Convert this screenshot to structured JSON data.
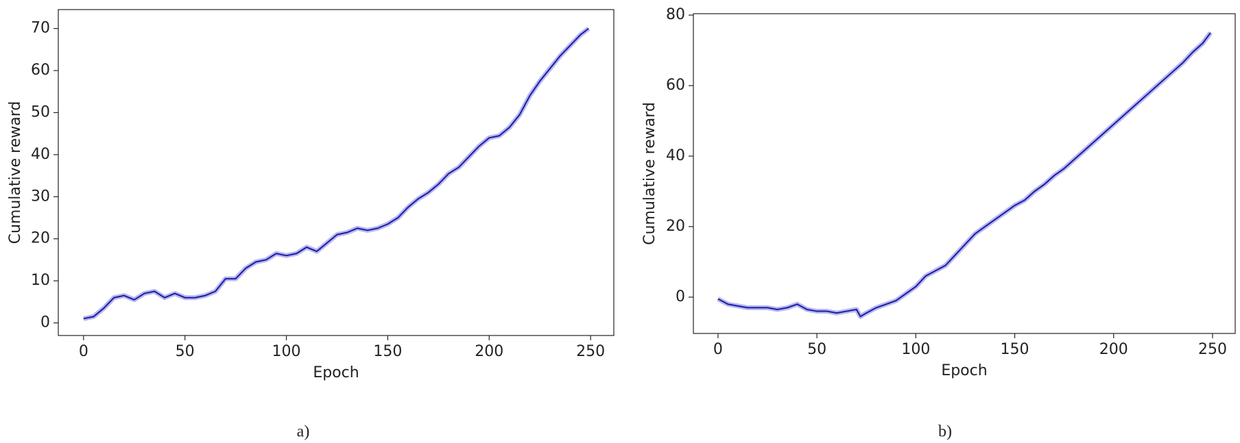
{
  "chart_data": [
    {
      "type": "line",
      "caption": "a)",
      "xlabel": "Epoch",
      "ylabel": "Cumulative reward",
      "xlim": [
        -12.45,
        261.45
      ],
      "xticks": [
        0,
        50,
        100,
        150,
        200,
        250
      ],
      "ylim": [
        -3,
        74.5
      ],
      "yticks": [
        0,
        10,
        20,
        30,
        40,
        50,
        60,
        70
      ],
      "series": [
        {
          "name": "reward",
          "color": "#1a1aa6",
          "x": [
            0,
            5,
            10,
            15,
            20,
            25,
            30,
            35,
            40,
            45,
            50,
            55,
            60,
            65,
            70,
            75,
            80,
            85,
            90,
            95,
            100,
            105,
            110,
            115,
            120,
            125,
            130,
            135,
            140,
            145,
            150,
            155,
            160,
            165,
            170,
            175,
            180,
            185,
            190,
            195,
            200,
            205,
            210,
            215,
            220,
            225,
            230,
            235,
            240,
            245,
            249
          ],
          "values": [
            1,
            1.5,
            3.5,
            6,
            6.5,
            5.5,
            7,
            7.5,
            6,
            7,
            6,
            6,
            6.5,
            7.5,
            10.5,
            10.5,
            13,
            14.5,
            15,
            16.5,
            16,
            16.5,
            18,
            17,
            19,
            21,
            21.5,
            22.5,
            22,
            22.5,
            23.5,
            25,
            27.5,
            29.5,
            31,
            33,
            35.5,
            37,
            39.5,
            42,
            44,
            44.5,
            46.5,
            49.5,
            54,
            57.5,
            60.5,
            63.5,
            66,
            68.5,
            70
          ]
        }
      ]
    },
    {
      "type": "line",
      "caption": "b)",
      "xlabel": "Epoch",
      "ylabel": "Cumulative reward",
      "xlim": [
        -12.45,
        261.45
      ],
      "xticks": [
        0,
        50,
        100,
        150,
        200,
        250
      ],
      "ylim": [
        -10.3,
        80.4
      ],
      "yticks": [
        0,
        20,
        40,
        60,
        80
      ],
      "series": [
        {
          "name": "reward",
          "color": "#1a1aa6",
          "x": [
            0,
            5,
            10,
            15,
            20,
            25,
            30,
            35,
            40,
            45,
            50,
            55,
            60,
            65,
            70,
            72,
            75,
            80,
            85,
            90,
            95,
            100,
            105,
            110,
            115,
            120,
            125,
            130,
            135,
            140,
            145,
            150,
            155,
            160,
            165,
            170,
            175,
            180,
            185,
            190,
            195,
            200,
            205,
            210,
            215,
            220,
            225,
            230,
            235,
            240,
            245,
            249
          ],
          "values": [
            -0.5,
            -2,
            -2.5,
            -3,
            -3,
            -3,
            -3.5,
            -3,
            -2,
            -3.5,
            -4,
            -4,
            -4.5,
            -4,
            -3.5,
            -5.5,
            -4.5,
            -3,
            -2,
            -1,
            1,
            3,
            6,
            7.5,
            9,
            12,
            15,
            18,
            20,
            22,
            24,
            26,
            27.5,
            30,
            32,
            34.5,
            36.5,
            39,
            41.5,
            44,
            46.5,
            49,
            51.5,
            54,
            56.5,
            59,
            61.5,
            64,
            66.5,
            69.5,
            72,
            75
          ]
        }
      ]
    }
  ]
}
